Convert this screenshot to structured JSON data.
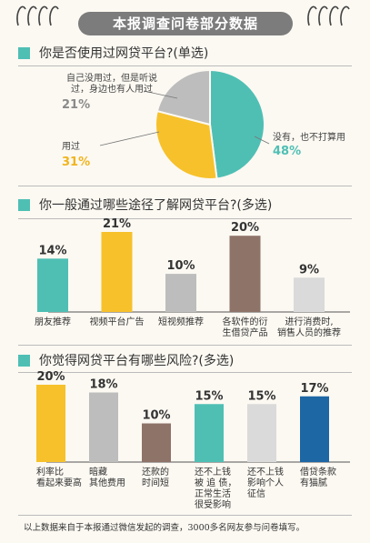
{
  "title": "本报调查问卷部分数据",
  "footnote": "以上数据来自于本报通过微信发起的调查，3000多名网友参与问卷填写。",
  "colors": {
    "teal": "#4fbfb4",
    "yellow": "#f6c12b",
    "gray": "#bdbdbd",
    "brown": "#8e7369",
    "light_gray": "#dadada",
    "blue": "#1d67a5"
  },
  "chart_data": [
    {
      "type": "pie",
      "title": "你是否使用过网贷平台?(单选)",
      "series": [
        {
          "label": "没有，也不打算用",
          "value": 48,
          "pct_text": "48%",
          "color": "#4fbfb4"
        },
        {
          "label": "用过",
          "value": 31,
          "pct_text": "31%",
          "color": "#f6c12b"
        },
        {
          "label": "自己没用过，但是听说过，身边也有人用过",
          "value": 21,
          "pct_text": "21%",
          "color": "#bdbdbd"
        }
      ]
    },
    {
      "type": "bar",
      "title": "你一般通过哪些途径了解网贷平台?(多选)",
      "categories": [
        "朋友推荐",
        "视频平台广告",
        "短视频推荐",
        "各软件的衍生借贷产品",
        "进行消费时，销售人员的推荐"
      ],
      "category_lines": [
        [
          "朋友推荐"
        ],
        [
          "视频平台广告"
        ],
        [
          "短视频推荐"
        ],
        [
          "各软件的衍",
          "生借贷产品"
        ],
        [
          "进行消费时,",
          "销售人员的推荐"
        ]
      ],
      "values": [
        14,
        21,
        10,
        20,
        9
      ],
      "value_labels": [
        "14%",
        "21%",
        "10%",
        "20%",
        "9%"
      ],
      "colors": [
        "#4fbfb4",
        "#f6c12b",
        "#bdbdbd",
        "#8e7369",
        "#dadada"
      ]
    },
    {
      "type": "bar",
      "title": "你觉得网贷平台有哪些风险?(多选)",
      "categories": [
        "利率比看起来要高",
        "暗藏其他费用",
        "还款的时间短",
        "还不上钱被追债，正常生活很受影响",
        "还不上钱影响个人征信",
        "借贷条款有猫腻"
      ],
      "category_lines": [
        [
          "利率比",
          "看起来要高"
        ],
        [
          "暗藏",
          "其他费用"
        ],
        [
          "还款的",
          "时间短"
        ],
        [
          "还不上钱",
          "被 追 债，",
          "正常生活",
          "很受影响"
        ],
        [
          "还不上钱",
          "影响个人",
          "征信"
        ],
        [
          "借贷条款",
          "有猫腻"
        ]
      ],
      "values": [
        20,
        18,
        10,
        15,
        15,
        17
      ],
      "value_labels": [
        "20%",
        "18%",
        "10%",
        "15%",
        "15%",
        "17%"
      ],
      "colors": [
        "#f6c12b",
        "#bdbdbd",
        "#8e7369",
        "#4fbfb4",
        "#dadada",
        "#1d67a5"
      ]
    }
  ]
}
